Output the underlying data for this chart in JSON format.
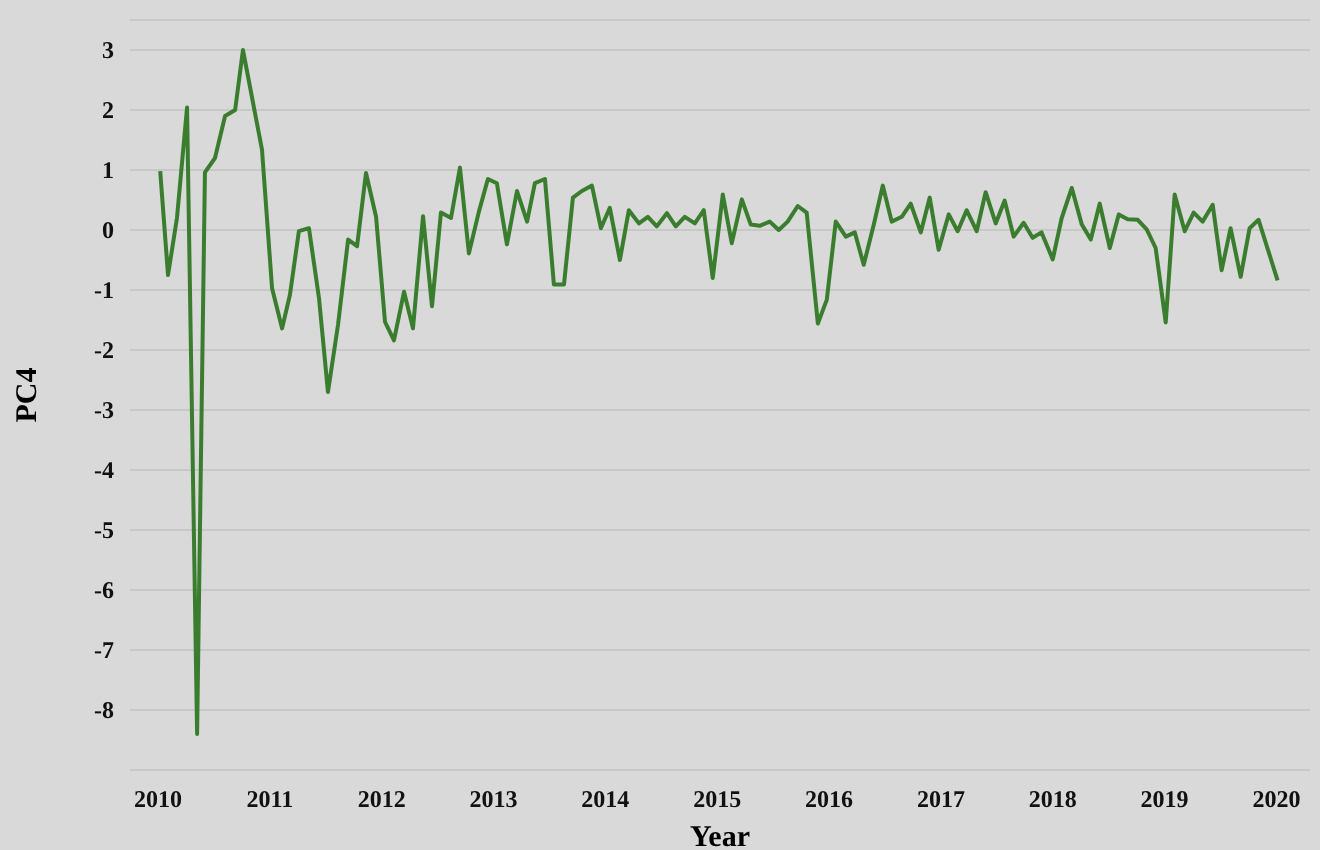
{
  "chart_data": {
    "type": "line",
    "xlabel": "Year",
    "ylabel": "PC4",
    "x": [
      2010.02,
      2010.09,
      2010.17,
      2010.26,
      2010.35,
      2010.42,
      2010.51,
      2010.6,
      2010.69,
      2010.76,
      2010.93,
      2011.02,
      2011.11,
      2011.18,
      2011.26,
      2011.35,
      2011.44,
      2011.52,
      2011.61,
      2011.7,
      2011.78,
      2011.86,
      2011.95,
      2012.03,
      2012.11,
      2012.2,
      2012.28,
      2012.37,
      2012.45,
      2012.53,
      2012.62,
      2012.7,
      2012.78,
      2012.87,
      2012.95,
      2013.03,
      2013.12,
      2013.21,
      2013.3,
      2013.37,
      2013.46,
      2013.54,
      2013.63,
      2013.71,
      2013.79,
      2013.88,
      2013.96,
      2014.04,
      2014.13,
      2014.21,
      2014.3,
      2014.38,
      2014.46,
      2014.55,
      2014.63,
      2014.71,
      2014.8,
      2014.88,
      2014.96,
      2015.05,
      2015.13,
      2015.22,
      2015.3,
      2015.38,
      2015.47,
      2015.55,
      2015.63,
      2015.72,
      2015.8,
      2015.9,
      2015.98,
      2016.06,
      2016.15,
      2016.23,
      2016.31,
      2016.4,
      2016.48,
      2016.56,
      2016.65,
      2016.73,
      2016.82,
      2016.9,
      2016.98,
      2017.07,
      2017.15,
      2017.23,
      2017.32,
      2017.4,
      2017.49,
      2017.57,
      2017.65,
      2017.74,
      2017.82,
      2017.9,
      2018,
      2018.08,
      2018.17,
      2018.26,
      2018.34,
      2018.42,
      2018.51,
      2018.59,
      2018.67,
      2018.76,
      2018.84,
      2018.92,
      2019.01,
      2019.09,
      2019.18,
      2019.26,
      2019.34,
      2019.43,
      2019.51,
      2019.59,
      2019.68,
      2019.76,
      2019.84,
      2020.01
    ],
    "series": [
      {
        "color": "#3b7d2e",
        "values": [
          0.98,
          -0.75,
          0.2,
          2.04,
          -8.4,
          0.96,
          1.2,
          1.9,
          2.0,
          3.0,
          1.34,
          -0.97,
          -1.64,
          -1.08,
          -0.02,
          0.03,
          -1.14,
          -2.7,
          -1.58,
          -0.16,
          -0.27,
          0.95,
          0.22,
          -1.53,
          -1.84,
          -1.03,
          -1.64,
          0.23,
          -1.27,
          0.29,
          0.2,
          1.04,
          -0.39,
          0.31,
          0.85,
          0.78,
          -0.24,
          0.65,
          0.14,
          0.78,
          0.85,
          -0.91,
          -0.91,
          0.54,
          0.65,
          0.74,
          0.03,
          0.37,
          -0.5,
          0.33,
          0.11,
          0.22,
          0.06,
          0.28,
          0.06,
          0.22,
          0.11,
          0.33,
          -0.8,
          0.59,
          -0.22,
          0.51,
          0.09,
          0.07,
          0.14,
          0.0,
          0.14,
          0.4,
          0.29,
          -1.56,
          -1.16,
          0.14,
          -0.11,
          -0.04,
          -0.58,
          0.09,
          0.74,
          0.14,
          0.22,
          0.44,
          -0.04,
          0.54,
          -0.33,
          0.26,
          -0.02,
          0.33,
          -0.02,
          0.63,
          0.11,
          0.49,
          -0.11,
          0.12,
          -0.13,
          -0.04,
          -0.49,
          0.2,
          0.7,
          0.09,
          -0.16,
          0.44,
          -0.3,
          0.26,
          0.18,
          0.17,
          0.01,
          -0.3,
          -1.54,
          0.59,
          -0.02,
          0.29,
          0.14,
          0.42,
          -0.67,
          0.03,
          -0.78,
          0.03,
          0.17,
          -0.84
        ]
      }
    ],
    "xlim": [
      2009.75,
      2020.3
    ],
    "xticks": [
      2010,
      2011,
      2012,
      2013,
      2014,
      2015,
      2016,
      2017,
      2018,
      2019,
      2020
    ],
    "ylim": [
      -9,
      3.5
    ],
    "yticks": [
      -8,
      -7,
      -6,
      -5,
      -4,
      -3,
      -2,
      -1,
      0,
      1,
      2,
      3
    ],
    "grid": "y",
    "marker": "none",
    "line_style": "solid"
  }
}
